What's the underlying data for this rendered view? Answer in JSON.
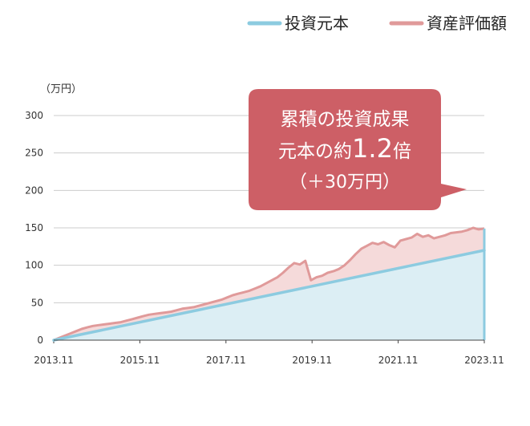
{
  "chart_data": {
    "type": "area",
    "ylabel": "（万円）",
    "ylim": [
      0,
      300
    ],
    "yticks": [
      0,
      50,
      100,
      150,
      200,
      250,
      300
    ],
    "xticks": [
      "2013.11",
      "2015.11",
      "2017.11",
      "2019.11",
      "2021.11",
      "2023.11"
    ],
    "grid": true,
    "legend_position": "top-right",
    "x_start": "2013.11",
    "x_end": "2023.11",
    "series": [
      {
        "name": "投資元本",
        "color": "#8ccbe0",
        "fill": "#dceef4",
        "values": [
          0,
          120
        ]
      },
      {
        "name": "資産評価額",
        "color": "#e09a9a",
        "fill": "#f5dada",
        "values": [
          0,
          3,
          6,
          9,
          12,
          15,
          17,
          19,
          20,
          21,
          22,
          23,
          24,
          26,
          28,
          30,
          32,
          34,
          35,
          36,
          37,
          38,
          40,
          42,
          43,
          44,
          46,
          48,
          50,
          52,
          54,
          57,
          60,
          62,
          64,
          66,
          69,
          72,
          76,
          80,
          84,
          90,
          97,
          103,
          101,
          106,
          80,
          84,
          86,
          90,
          92,
          95,
          100,
          107,
          115,
          122,
          126,
          130,
          128,
          131,
          127,
          124,
          133,
          135,
          137,
          142,
          138,
          140,
          136,
          138,
          140,
          143,
          144,
          145,
          147,
          150,
          148,
          149
        ]
      }
    ],
    "annotation": {
      "line1": "累積の投資成果",
      "line2_pre": "元本の約",
      "line2_num": "1.2",
      "line2_post": "倍",
      "line3": "（＋30万円）",
      "color": "#cd5f66"
    }
  }
}
